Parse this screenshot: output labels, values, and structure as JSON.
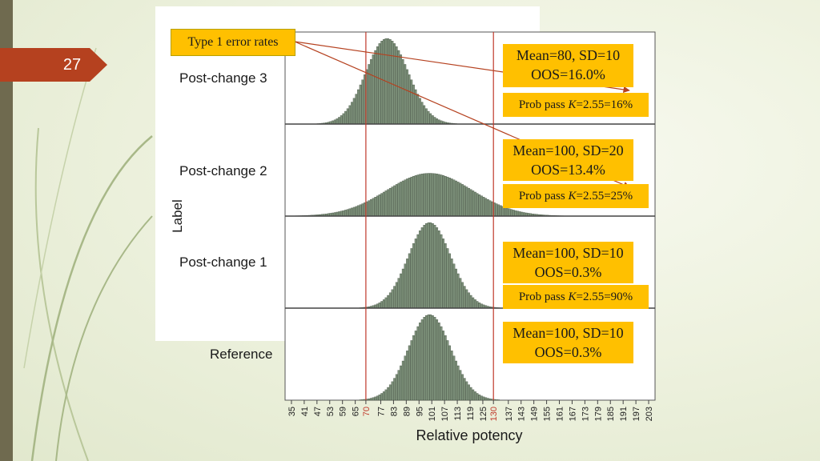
{
  "slide": {
    "number": "27",
    "type1_label": "Type 1 error rates"
  },
  "callouts": [
    {
      "line1": "Mean=80, SD=10",
      "line2": "OOS=16.0%",
      "prob_prefix": "Prob pass ",
      "prob_k": "K",
      "prob_suffix": "=2.55=16%"
    },
    {
      "line1": "Mean=100, SD=20",
      "line2": "OOS=13.4%",
      "prob_prefix": "Prob pass ",
      "prob_k": "K",
      "prob_suffix": "=2.55=25%"
    },
    {
      "line1": "Mean=100, SD=10",
      "line2": "OOS=0.3%",
      "prob_prefix": "Prob pass ",
      "prob_k": "K",
      "prob_suffix": "=2.55=90%"
    },
    {
      "line1": "Mean=100, SD=10",
      "line2": "OOS=0.3%"
    }
  ],
  "chart_data": {
    "type": "bar",
    "subtype": "stacked histograms",
    "xlabel": "Relative potency",
    "ylabel": "Label",
    "xlim": [
      32,
      206
    ],
    "x_ticks": [
      "35",
      "41",
      "47",
      "53",
      "59",
      "65",
      "70",
      "77",
      "83",
      "89",
      "95",
      "101",
      "107",
      "113",
      "119",
      "125",
      "130",
      "137",
      "143",
      "149",
      "155",
      "161",
      "167",
      "173",
      "179",
      "185",
      "191",
      "197",
      "203"
    ],
    "highlighted_ticks": [
      "70",
      "130"
    ],
    "spec_limits": [
      70,
      130
    ],
    "spec_line_color": "#c0392b",
    "bar_color": "#7d917a",
    "panels": [
      {
        "label": "Post-change 3",
        "mean": 80,
        "sd": 10
      },
      {
        "label": "Post-change 2",
        "mean": 100,
        "sd": 20
      },
      {
        "label": "Post-change 1",
        "mean": 100,
        "sd": 10
      },
      {
        "label": "Reference",
        "mean": 100,
        "sd": 10
      }
    ]
  }
}
